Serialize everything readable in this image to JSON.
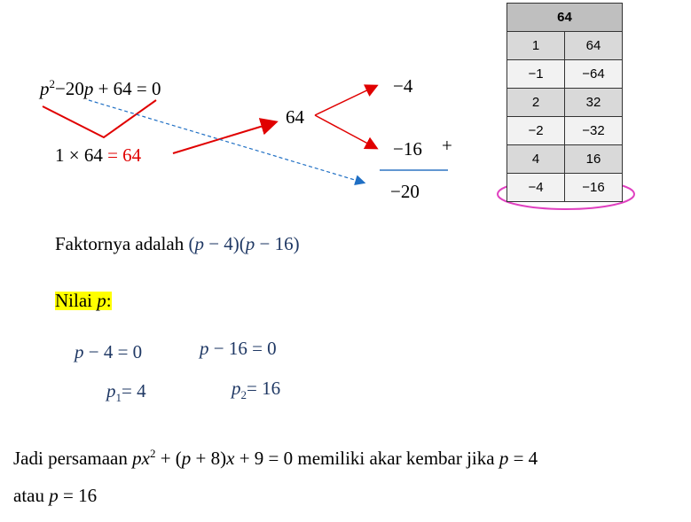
{
  "equation": [
    "p",
    "2",
    "−20",
    "p",
    " + 64 = 0"
  ],
  "product": {
    "left": "1 × 64 ",
    "right": "= 64"
  },
  "middle": "64",
  "factors": {
    "first": "−4",
    "second": "−16",
    "plus": "+",
    "sum": "−20"
  },
  "table": {
    "header": "64",
    "rows": [
      [
        "1",
        "64"
      ],
      [
        "−1",
        "−64"
      ],
      [
        "2",
        "32"
      ],
      [
        "−2",
        "−32"
      ],
      [
        "4",
        "16"
      ],
      [
        "−4",
        "−16"
      ]
    ]
  },
  "factor_text": [
    "Faktornya adalah ",
    "(",
    "p",
    " − 4)(",
    "p",
    " − 16)"
  ],
  "nilai": [
    "Nilai ",
    "p",
    ":"
  ],
  "solutions": {
    "eq1": [
      "p",
      " − 4 = 0"
    ],
    "eq2": [
      "p",
      " − 16 = 0"
    ],
    "p1": [
      "p",
      "1",
      "= 4"
    ],
    "p2": [
      "p",
      "2",
      "= 16"
    ]
  },
  "conclusion": {
    "line1": [
      "Jadi persamaan ",
      "px",
      "2",
      " + (",
      "p",
      " + 8)",
      "x",
      " + 9 = 0 memiliki akar kembar jika ",
      "p",
      " = 4"
    ],
    "line2": [
      "atau ",
      "p",
      " = 16"
    ]
  }
}
